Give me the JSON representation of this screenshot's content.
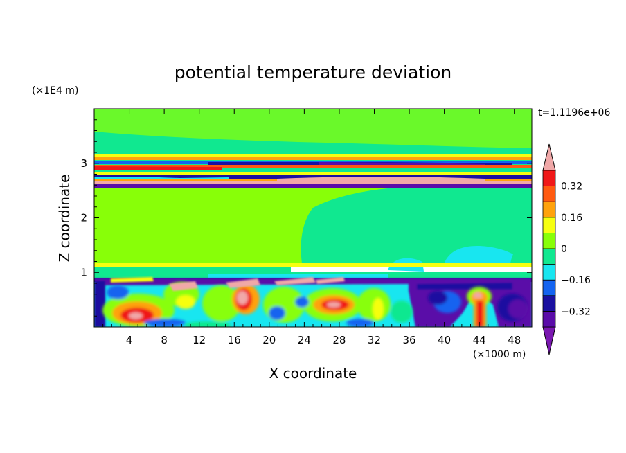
{
  "chart_data": {
    "type": "heatmap",
    "title": "potential temperature deviation",
    "xlabel": "X coordinate",
    "ylabel": "Z coordinate",
    "x_unit_label": "(×1000 m)",
    "y_unit_label": "(×1E4 m)",
    "time_label": "t=1.1196e+06",
    "xlim": [
      0,
      50
    ],
    "ylim": [
      0,
      4
    ],
    "x_ticks": [
      4,
      8,
      12,
      16,
      20,
      24,
      28,
      32,
      36,
      40,
      44,
      48
    ],
    "x_tick_labels": [
      "4",
      "8",
      "12",
      "16",
      "20",
      "24",
      "28",
      "32",
      "36",
      "40",
      "44",
      "48"
    ],
    "y_ticks": [
      1,
      2,
      3
    ],
    "y_tick_labels": [
      "1",
      "2",
      "3"
    ],
    "colorbar": {
      "levels": [
        -0.4,
        -0.32,
        -0.24,
        -0.16,
        -0.08,
        0,
        0.08,
        0.16,
        0.24,
        0.32,
        0.4
      ],
      "colors": [
        "#5a0ca8",
        "#1a10a0",
        "#1464f0",
        "#18e6f0",
        "#10e890",
        "#88ff08",
        "#f6ff10",
        "#ffa20c",
        "#ff5a10",
        "#f01818"
      ],
      "under_color": "#7a18b0",
      "over_color": "#f0a8a8",
      "tick_values": [
        0.32,
        0.16,
        0,
        -0.16,
        -0.32
      ],
      "tick_labels": [
        "0.32",
        "0.16",
        "0",
        "−0.16",
        "−0.32"
      ]
    }
  }
}
